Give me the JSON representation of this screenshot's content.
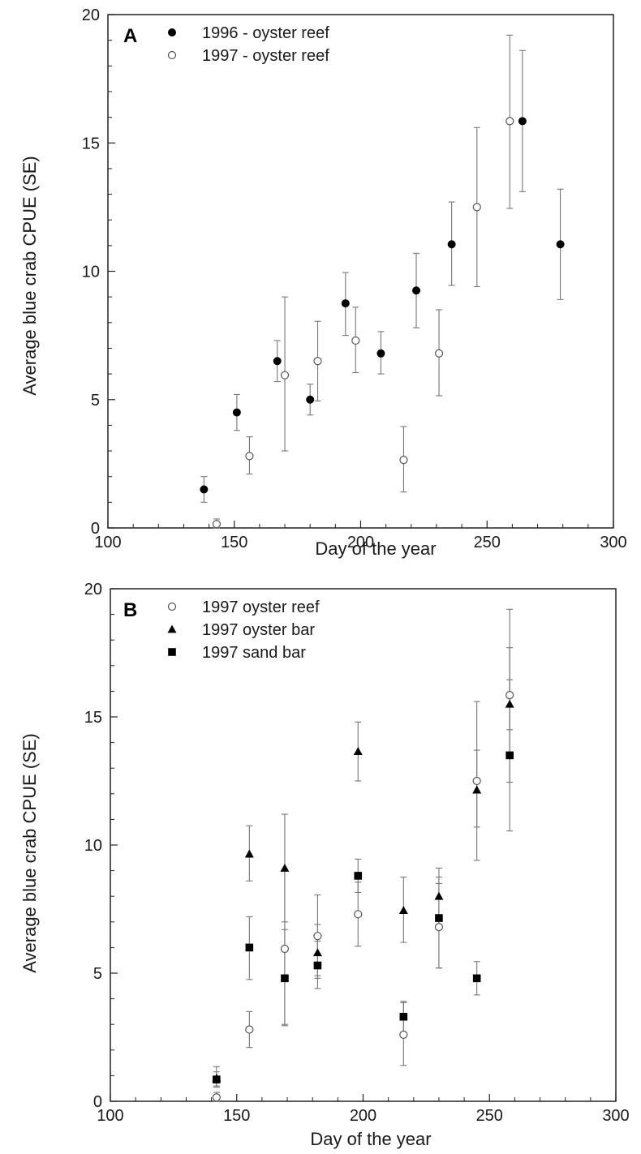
{
  "chart_data": [
    {
      "type": "scatter",
      "panel": "A",
      "xlabel": "Day of the year",
      "ylabel": "Average blue crab CPUE (SE)",
      "xlim": [
        100,
        300
      ],
      "ylim": [
        0,
        20
      ],
      "xticks": [
        100,
        150,
        200,
        250,
        300
      ],
      "yticks": [
        0,
        5,
        10,
        15,
        20
      ],
      "x_tick_labels": [
        "100",
        "150",
        "200",
        "250",
        "300"
      ],
      "y_tick_labels": [
        "0",
        "5",
        "10",
        "15",
        "20"
      ],
      "legend_position": "top-left",
      "grid": false,
      "series": [
        {
          "name": "1996 - oyster reef",
          "marker": "filled-circle",
          "points": [
            {
              "x": 138,
              "y": 1.5,
              "lo": 1.0,
              "hi": 2.0
            },
            {
              "x": 151,
              "y": 4.5,
              "lo": 3.8,
              "hi": 5.2
            },
            {
              "x": 167,
              "y": 6.5,
              "lo": 5.7,
              "hi": 7.3
            },
            {
              "x": 180,
              "y": 5.0,
              "lo": 4.4,
              "hi": 5.6
            },
            {
              "x": 194,
              "y": 8.75,
              "lo": 7.5,
              "hi": 9.95
            },
            {
              "x": 208,
              "y": 6.8,
              "lo": 6.0,
              "hi": 7.65
            },
            {
              "x": 222,
              "y": 9.25,
              "lo": 7.8,
              "hi": 10.7
            },
            {
              "x": 236,
              "y": 11.05,
              "lo": 9.45,
              "hi": 12.7
            },
            {
              "x": 264,
              "y": 15.85,
              "lo": 13.1,
              "hi": 18.6
            },
            {
              "x": 279,
              "y": 11.05,
              "lo": 8.9,
              "hi": 13.2
            }
          ]
        },
        {
          "name": "1997 - oyster reef",
          "marker": "open-circle",
          "points": [
            {
              "x": 143,
              "y": 0.15,
              "lo": 0.0,
              "hi": 0.35
            },
            {
              "x": 156,
              "y": 2.8,
              "lo": 2.1,
              "hi": 3.55
            },
            {
              "x": 170,
              "y": 5.95,
              "lo": 3.0,
              "hi": 9.0
            },
            {
              "x": 183,
              "y": 6.5,
              "lo": 4.95,
              "hi": 8.05
            },
            {
              "x": 198,
              "y": 7.3,
              "lo": 6.05,
              "hi": 8.6
            },
            {
              "x": 217,
              "y": 2.65,
              "lo": 1.4,
              "hi": 3.95
            },
            {
              "x": 231,
              "y": 6.8,
              "lo": 5.15,
              "hi": 8.5
            },
            {
              "x": 246,
              "y": 12.5,
              "lo": 9.4,
              "hi": 15.6
            },
            {
              "x": 259,
              "y": 15.85,
              "lo": 12.45,
              "hi": 19.2
            }
          ]
        }
      ]
    },
    {
      "type": "scatter",
      "panel": "B",
      "xlabel": "Day of the year",
      "ylabel": "Average blue crab CPUE (SE)",
      "xlim": [
        100,
        300
      ],
      "ylim": [
        0,
        20
      ],
      "xticks": [
        100,
        150,
        200,
        250,
        300
      ],
      "yticks": [
        0,
        5,
        10,
        15,
        20
      ],
      "x_tick_labels": [
        "100",
        "150",
        "200",
        "250",
        "300"
      ],
      "y_tick_labels": [
        "0",
        "5",
        "10",
        "15",
        "20"
      ],
      "legend_position": "top-left",
      "grid": false,
      "series": [
        {
          "name": "1997 oyster reef",
          "marker": "open-circle",
          "points": [
            {
              "x": 142,
              "y": 0.15,
              "lo": 0.0,
              "hi": 0.35
            },
            {
              "x": 155,
              "y": 2.8,
              "lo": 2.1,
              "hi": 3.5
            },
            {
              "x": 169,
              "y": 5.95,
              "lo": 3.0,
              "hi": 9.0
            },
            {
              "x": 182,
              "y": 6.45,
              "lo": 4.9,
              "hi": 8.05
            },
            {
              "x": 198,
              "y": 7.3,
              "lo": 6.05,
              "hi": 8.55
            },
            {
              "x": 216,
              "y": 2.6,
              "lo": 1.4,
              "hi": 3.85
            },
            {
              "x": 230,
              "y": 6.8,
              "lo": 5.2,
              "hi": 8.5
            },
            {
              "x": 245,
              "y": 12.5,
              "lo": 9.4,
              "hi": 15.6
            },
            {
              "x": 258,
              "y": 15.85,
              "lo": 12.45,
              "hi": 19.2
            }
          ]
        },
        {
          "name": "1997 oyster bar",
          "marker": "filled-triangle",
          "points": [
            {
              "x": 142,
              "y": 0.9,
              "lo": 0.6,
              "hi": 1.35
            },
            {
              "x": 155,
              "y": 9.65,
              "lo": 8.6,
              "hi": 10.75
            },
            {
              "x": 169,
              "y": 9.1,
              "lo": 7.0,
              "hi": 11.2
            },
            {
              "x": 182,
              "y": 5.8,
              "lo": 4.8,
              "hi": 6.9
            },
            {
              "x": 198,
              "y": 13.65,
              "lo": 12.5,
              "hi": 14.8
            },
            {
              "x": 216,
              "y": 7.45,
              "lo": 6.2,
              "hi": 8.75
            },
            {
              "x": 230,
              "y": 8.0,
              "lo": 6.9,
              "hi": 9.1
            },
            {
              "x": 245,
              "y": 12.15,
              "lo": 10.7,
              "hi": 13.7
            },
            {
              "x": 258,
              "y": 15.5,
              "lo": 14.5,
              "hi": 17.7
            }
          ]
        },
        {
          "name": "1997 sand bar",
          "marker": "filled-square",
          "points": [
            {
              "x": 142,
              "y": 0.85,
              "lo": 0.55,
              "hi": 1.15
            },
            {
              "x": 155,
              "y": 6.0,
              "lo": 4.75,
              "hi": 7.2
            },
            {
              "x": 169,
              "y": 4.8,
              "lo": 2.95,
              "hi": 6.7
            },
            {
              "x": 182,
              "y": 5.3,
              "lo": 4.4,
              "hi": 6.25
            },
            {
              "x": 198,
              "y": 8.8,
              "lo": 8.15,
              "hi": 9.45
            },
            {
              "x": 216,
              "y": 3.3,
              "lo": 2.7,
              "hi": 3.9
            },
            {
              "x": 230,
              "y": 7.15,
              "lo": 5.2,
              "hi": 8.75
            },
            {
              "x": 245,
              "y": 4.8,
              "lo": 4.15,
              "hi": 5.45
            },
            {
              "x": 258,
              "y": 13.5,
              "lo": 10.55,
              "hi": 16.45
            }
          ]
        }
      ]
    }
  ]
}
